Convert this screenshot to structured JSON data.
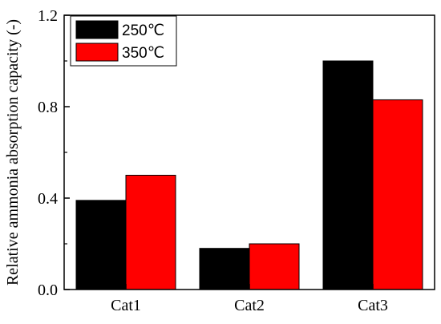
{
  "chart_data": {
    "type": "bar",
    "categories": [
      "Cat1",
      "Cat2",
      "Cat3"
    ],
    "series": [
      {
        "name": "250℃",
        "values": [
          0.39,
          0.18,
          1.0
        ],
        "color": "#000000"
      },
      {
        "name": "350℃",
        "values": [
          0.5,
          0.2,
          0.83
        ],
        "color": "#ff0000"
      }
    ],
    "title": "",
    "xlabel": "",
    "ylabel": "Relative ammonia absorption capacity (-)",
    "ylim": [
      0,
      1.2
    ],
    "yticks": [
      "0.0",
      "0.4",
      "0.8",
      "1.2"
    ],
    "legend": "top-left",
    "grid": false
  }
}
